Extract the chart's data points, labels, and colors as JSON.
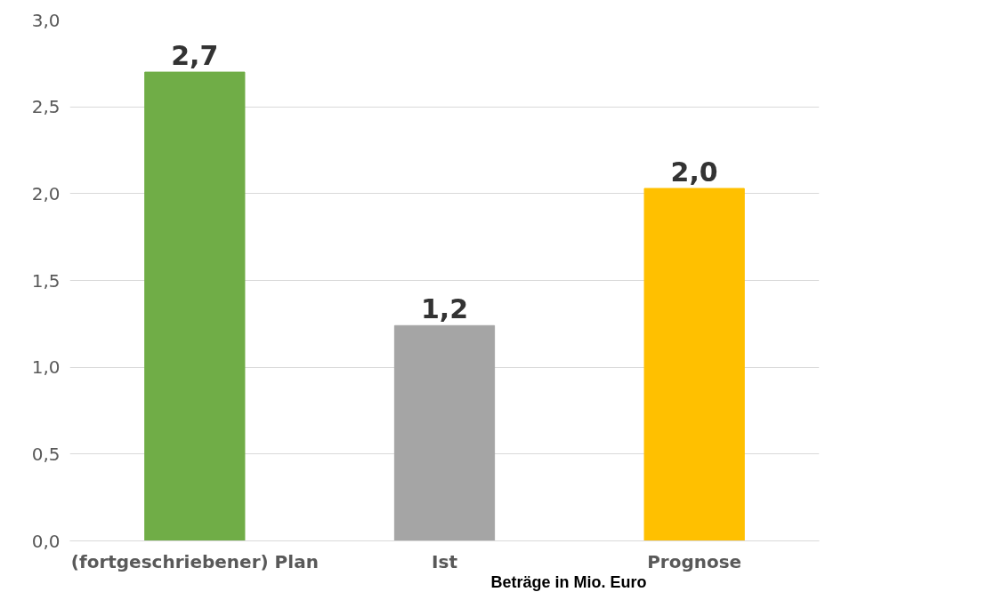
{
  "chart_data": {
    "type": "bar",
    "categories": [
      "(fortgeschriebener) Plan",
      "Ist",
      "Prognose"
    ],
    "values": [
      2.7,
      1.24,
      2.03
    ],
    "colors": [
      "#70ad47",
      "#a5a5a5",
      "#ffc000"
    ],
    "value_labels": [
      "2,7",
      "1,2",
      "2,0"
    ],
    "ylim": [
      0,
      3
    ],
    "yticks": [
      {
        "value": 0,
        "label": "0,0"
      },
      {
        "value": 0.5,
        "label": "0,5"
      },
      {
        "value": 1,
        "label": "1,0"
      },
      {
        "value": 1.5,
        "label": "1,5"
      },
      {
        "value": 2,
        "label": "2,0"
      },
      {
        "value": 2.5,
        "label": "2,5"
      },
      {
        "value": 3,
        "label": "3,0"
      }
    ],
    "grid": "y",
    "annotations": [
      "Beträge in Mio. Euro"
    ]
  }
}
